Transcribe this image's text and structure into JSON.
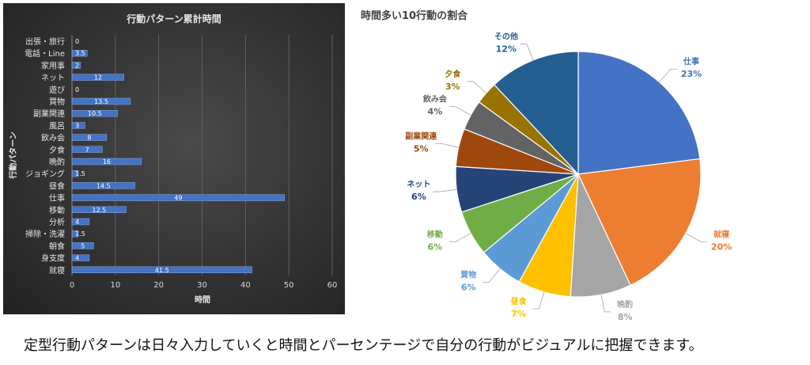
{
  "caption": "定型行動パターンは日々入力していくと時間とパーセンテージで自分の行動がビジュアルに把握できます。",
  "chart_data": [
    {
      "type": "bar",
      "orientation": "horizontal",
      "title": "行動パターン累計時間",
      "xlabel": "時間",
      "ylabel": "行動パターン",
      "xlim": [
        0,
        60
      ],
      "xticks": [
        0,
        10,
        20,
        30,
        40,
        50,
        60
      ],
      "grid": true,
      "background": "#333333",
      "bar_color": "#4472C4",
      "categories": [
        "出張・旅行",
        "電話・Line",
        "家用事",
        "ネット",
        "遊び",
        "買物",
        "副業関連",
        "風呂",
        "飲み会",
        "夕食",
        "晩酌",
        "ジョギング",
        "昼食",
        "仕事",
        "移動",
        "分析",
        "掃除・洗濯",
        "朝食",
        "身支度",
        "就寝"
      ],
      "values": [
        0,
        3.5,
        2,
        12,
        0,
        13.5,
        10.5,
        3,
        8,
        7,
        16,
        1.5,
        14.5,
        49,
        12.5,
        4,
        1.5,
        5,
        4,
        41.5
      ],
      "value_labels": [
        "0",
        "3.5",
        "2",
        "12",
        "0",
        "13.5",
        "10.5",
        "3",
        "8",
        "7",
        "16",
        "1.5",
        "14.5",
        "49",
        "12.5",
        "4",
        "1.5",
        "5",
        "4",
        "41.5"
      ]
    },
    {
      "type": "pie",
      "title": "時間多い10行動の割合",
      "slices": [
        {
          "label": "仕事",
          "value": 23,
          "pct": "23%",
          "color": "#4472C4"
        },
        {
          "label": "就寝",
          "value": 20,
          "pct": "20%",
          "color": "#ED7D31"
        },
        {
          "label": "晩酌",
          "value": 8,
          "pct": "8%",
          "color": "#A5A5A5"
        },
        {
          "label": "昼食",
          "value": 7,
          "pct": "7%",
          "color": "#FFC000"
        },
        {
          "label": "買物",
          "value": 6,
          "pct": "6%",
          "color": "#5B9BD5"
        },
        {
          "label": "移動",
          "value": 6,
          "pct": "6%",
          "color": "#70AD47"
        },
        {
          "label": "ネット",
          "value": 6,
          "pct": "6%",
          "color": "#264478"
        },
        {
          "label": "副業関連",
          "value": 5,
          "pct": "5%",
          "color": "#9E480E"
        },
        {
          "label": "飲み会",
          "value": 4,
          "pct": "4%",
          "color": "#636363"
        },
        {
          "label": "夕食",
          "value": 3,
          "pct": "3%",
          "color": "#997300"
        },
        {
          "label": "その他",
          "value": 12,
          "pct": "12%",
          "color": "#255E91"
        }
      ]
    }
  ]
}
